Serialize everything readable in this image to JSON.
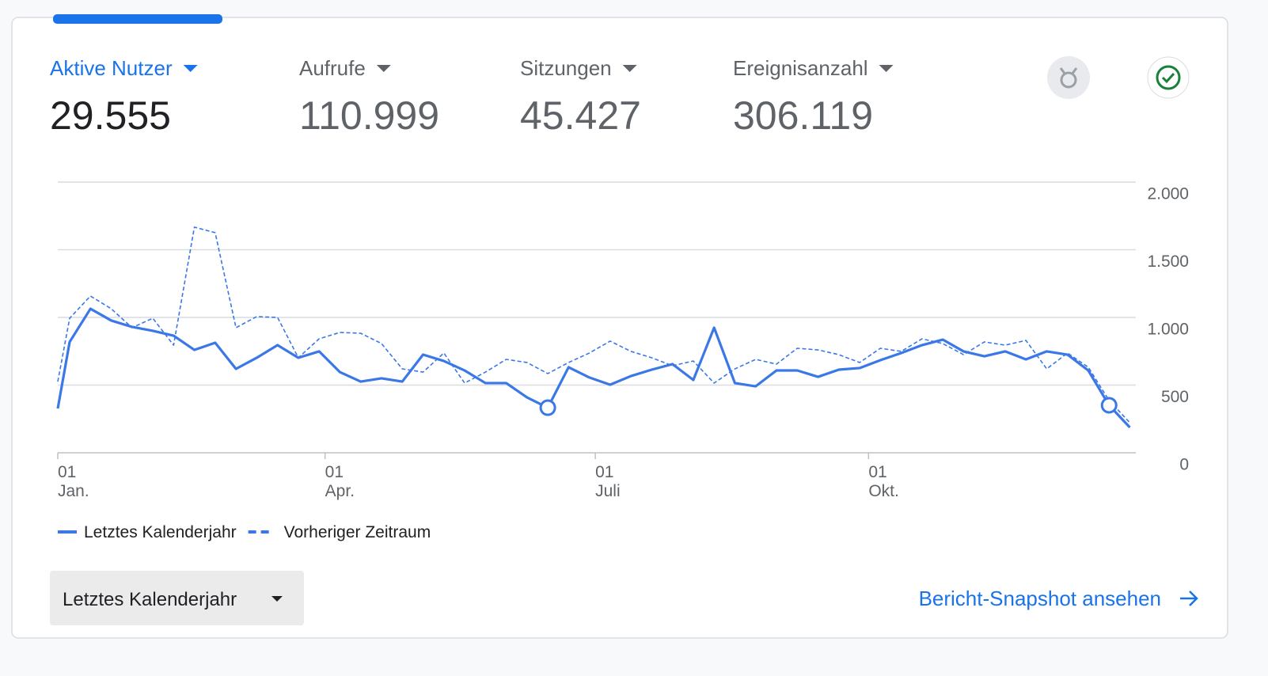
{
  "tabs": [
    {
      "label": "Aktive Nutzer",
      "value": "29.555",
      "active": true
    },
    {
      "label": "Aufrufe",
      "value": "110.999",
      "active": false
    },
    {
      "label": "Sitzungen",
      "value": "45.427",
      "active": false
    },
    {
      "label": "Ereignisanzahl",
      "value": "306.119",
      "active": false
    }
  ],
  "chart_data": {
    "type": "line",
    "x": [
      0,
      4,
      11,
      18,
      25,
      32,
      39,
      46,
      53,
      60,
      67,
      74,
      81,
      88,
      95,
      102,
      109,
      116,
      123,
      130,
      137,
      144,
      151,
      158,
      165,
      172,
      179,
      186,
      193,
      200,
      207,
      214,
      221,
      228,
      235,
      242,
      249,
      256,
      263,
      270,
      277,
      284,
      291,
      298,
      305,
      312,
      319,
      326,
      333,
      340,
      347,
      354,
      361
    ],
    "xlim": [
      0,
      363
    ],
    "xticks": [
      {
        "value": 0,
        "label": "01"
      },
      {
        "value": 90,
        "label": "01"
      },
      {
        "value": 181,
        "label": "01"
      },
      {
        "value": 273,
        "label": "01"
      }
    ],
    "xtick_sublabels": [
      "Jan.",
      "Apr.",
      "Juli",
      "Okt."
    ],
    "ylim": [
      0,
      2000
    ],
    "yticks": [
      0,
      500,
      {
        "value": 1000,
        "label": "1.000"
      },
      {
        "value": 1500,
        "label": "1.500"
      },
      {
        "value": 2000,
        "label": "2.000"
      }
    ],
    "grid": true,
    "series": [
      {
        "name": "Letztes Kalenderjahr",
        "color": "#3b78e7",
        "style": "solid",
        "values": [
          327,
          819,
          1064,
          977,
          930,
          901,
          865,
          760,
          813,
          620,
          702,
          795,
          702,
          749,
          596,
          526,
          550,
          526,
          725,
          678,
          608,
          515,
          515,
          409,
          333,
          632,
          556,
          503,
          567,
          614,
          655,
          538,
          924,
          515,
          491,
          608,
          608,
          561,
          614,
          626,
          684,
          737,
          795,
          836,
          749,
          713,
          749,
          690,
          749,
          725,
          608,
          351,
          187
        ]
      },
      {
        "name": "Vorheriger Zeitraum",
        "color": "#3b78e7",
        "style": "dashed",
        "values": [
          526,
          994,
          1158,
          1064,
          924,
          994,
          795,
          1667,
          1626,
          924,
          1006,
          1000,
          702,
          842,
          889,
          883,
          807,
          620,
          596,
          737,
          515,
          596,
          690,
          667,
          585,
          667,
          737,
          825,
          749,
          702,
          643,
          678,
          515,
          620,
          690,
          655,
          772,
          760,
          725,
          667,
          772,
          749,
          842,
          807,
          725,
          819,
          795,
          830,
          620,
          737,
          632,
          386,
          222
        ]
      }
    ],
    "highlight_points": [
      24,
      51
    ]
  },
  "date_range": "Letztes Kalenderjahr",
  "link": "Bericht-Snapshot ansehen"
}
